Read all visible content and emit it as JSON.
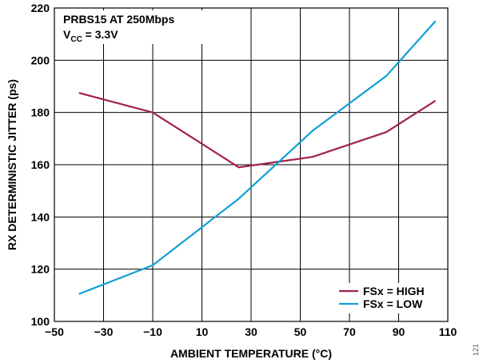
{
  "chart_data": {
    "type": "line",
    "title": "",
    "xlabel": "AMBIENT TEMPERATURE (°C)",
    "ylabel": "RX DETERMINISTIC JITTER (ps)",
    "xlim": [
      -50,
      110
    ],
    "ylim": [
      100,
      220
    ],
    "x_ticks": [
      -50,
      -30,
      -10,
      10,
      30,
      50,
      70,
      90,
      110
    ],
    "x_tick_labels": [
      "−50",
      "−30",
      "−10",
      "10",
      "30",
      "50",
      "70",
      "90",
      "110"
    ],
    "y_ticks": [
      100,
      120,
      140,
      160,
      180,
      200,
      220
    ],
    "y_tick_labels": [
      "100",
      "120",
      "140",
      "160",
      "180",
      "200",
      "220"
    ],
    "grid": true,
    "legend_position": "bottom-right",
    "annotation": {
      "line1": "PRBS15 AT 250Mbps",
      "line2_main": "V",
      "line2_sub": "CC",
      "line2_rest": " = 3.3V"
    },
    "series": [
      {
        "name": "FSx = HIGH",
        "color": "#a0224e",
        "points": [
          [
            -40,
            187.5
          ],
          [
            -10,
            180
          ],
          [
            25,
            159
          ],
          [
            55,
            163
          ],
          [
            85,
            172.5
          ],
          [
            105,
            184.5
          ]
        ]
      },
      {
        "name": "FSx = LOW",
        "color": "#119fd6",
        "points": [
          [
            -40,
            110.5
          ],
          [
            -10,
            121.5
          ],
          [
            25,
            147
          ],
          [
            55,
            173
          ],
          [
            85,
            194
          ],
          [
            105,
            215
          ]
        ]
      }
    ]
  },
  "side_label": "121"
}
